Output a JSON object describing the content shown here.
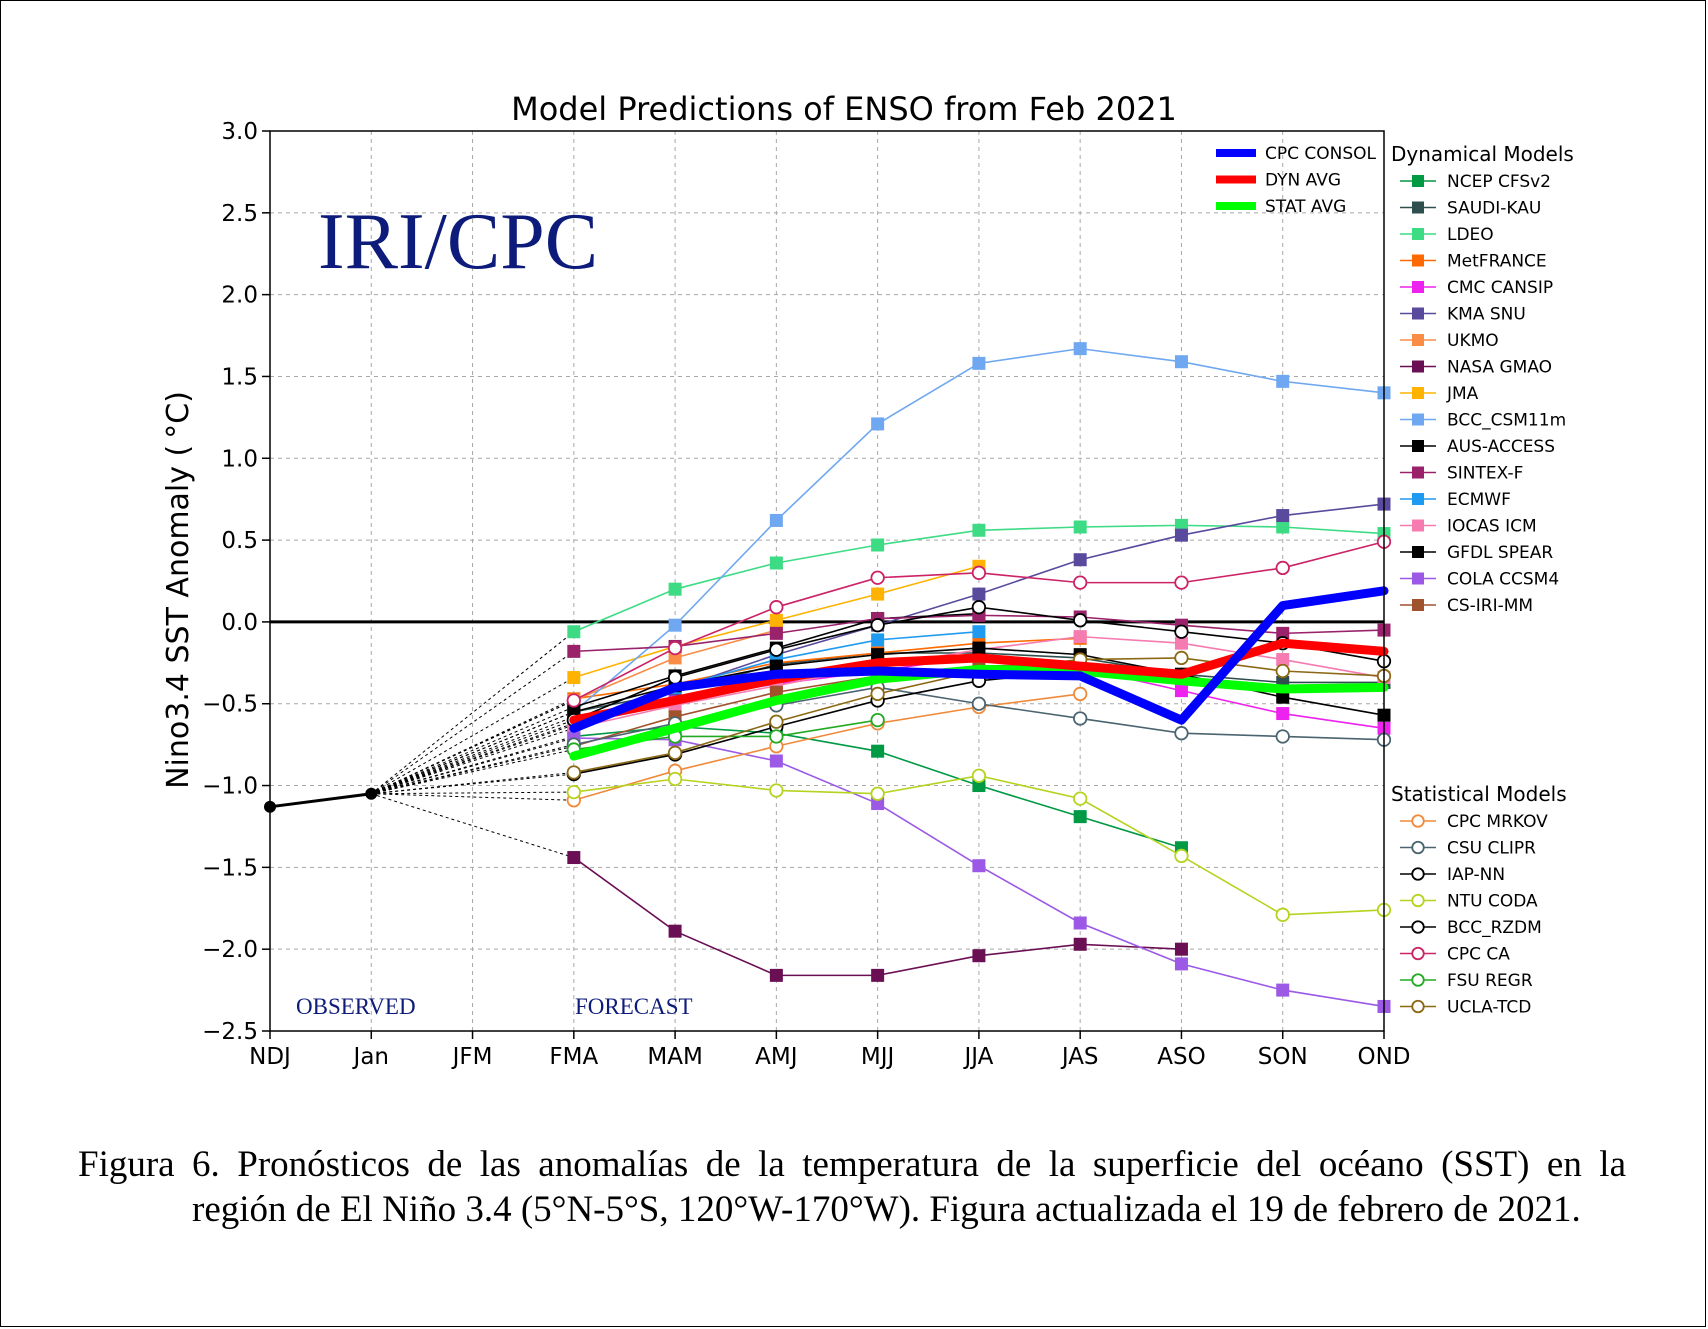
{
  "chart_data": {
    "type": "line",
    "title": "Model Predictions of ENSO from Feb 2021",
    "ylabel": "Nino3.4 SST Anomaly ( °C)",
    "xlabel": "",
    "categories": [
      "NDJ",
      "Jan",
      "JFM",
      "FMA",
      "MAM",
      "AMJ",
      "MJJ",
      "JJA",
      "JAS",
      "ASO",
      "SON",
      "OND"
    ],
    "ylim": [
      -2.5,
      3.0
    ],
    "yticks": [
      3.0,
      2.5,
      2.0,
      1.5,
      1.0,
      0.5,
      0.0,
      -0.5,
      -1.0,
      -1.5,
      -2.0,
      -2.5
    ],
    "ytick_labels": [
      "3.0",
      "2.5",
      "2.0",
      "1.5",
      "1.0",
      "0.5",
      "0.0",
      "−0.5",
      "−1.0",
      "−1.5",
      "−2.0",
      "−2.5"
    ],
    "grid": true,
    "zero_line": true,
    "annotations": {
      "watermark": "IRI/CPC",
      "observed": "OBSERVED",
      "forecast": "FORECAST"
    },
    "observed": {
      "x": [
        "NDJ",
        "Jan"
      ],
      "values": [
        -1.13,
        -1.05
      ],
      "color": "#000000"
    },
    "averages": [
      {
        "name": "CPC CONSOL",
        "color": "#0000ff",
        "values": [
          -0.65,
          -0.4,
          -0.32,
          -0.3,
          -0.32,
          -0.33,
          -0.6,
          0.1,
          0.19
        ]
      },
      {
        "name": "DYN AVG",
        "color": "#ff0000",
        "values": [
          -0.6,
          -0.48,
          -0.35,
          -0.25,
          -0.22,
          -0.27,
          -0.32,
          -0.13,
          -0.18
        ]
      },
      {
        "name": "STAT AVG",
        "color": "#00ff00",
        "values": [
          -0.82,
          -0.65,
          -0.48,
          -0.35,
          -0.29,
          -0.3,
          -0.36,
          -0.41,
          -0.4
        ]
      }
    ],
    "legend_dynamical_title": "Dynamical Models",
    "legend_statistical_title": "Statistical Models",
    "dynamical_series": [
      {
        "name": "NCEP CFSv2",
        "color": "#009944",
        "values": [
          -0.7,
          -0.64,
          -0.68,
          -0.79,
          -1.0,
          -1.19,
          -1.38
        ]
      },
      {
        "name": "SAUDI-KAU",
        "color": "#2f4f4f",
        "values": [
          -0.55,
          -0.43,
          -0.26,
          -0.19,
          -0.19,
          -0.22,
          -0.32,
          -0.37,
          -0.37
        ]
      },
      {
        "name": "LDEO",
        "color": "#3ddc84",
        "values": [
          -0.06,
          0.2,
          0.36,
          0.47,
          0.56,
          0.58,
          0.59,
          0.58,
          0.54
        ]
      },
      {
        "name": "MetFRANCE",
        "color": "#ff6a00",
        "values": [
          -0.47,
          -0.38,
          -0.25,
          -0.19,
          -0.13,
          -0.1
        ]
      },
      {
        "name": "CMC CANSIP",
        "color": "#ee22ee",
        "values": [
          -0.58,
          -0.47,
          -0.38,
          -0.3,
          -0.21,
          -0.28,
          -0.42,
          -0.56,
          -0.65
        ]
      },
      {
        "name": "KMA SNU",
        "color": "#5a4a9e",
        "values": [
          -0.62,
          -0.41,
          -0.2,
          -0.02,
          0.17,
          0.38,
          0.53,
          0.65,
          0.72
        ]
      },
      {
        "name": "UKMO",
        "color": "#f98d46",
        "values": [
          -0.48,
          -0.22,
          -0.05
        ]
      },
      {
        "name": "NASA GMAO",
        "color": "#6b0f55",
        "values": [
          -1.44,
          -1.89,
          -2.16,
          -2.16,
          -2.04,
          -1.97,
          -2.0
        ]
      },
      {
        "name": "JMA",
        "color": "#ffb300",
        "values": [
          -0.34,
          -0.15,
          0.01,
          0.17,
          0.34
        ]
      },
      {
        "name": "BCC_CSM11m",
        "color": "#6fa8f0",
        "values": [
          -0.55,
          -0.02,
          0.62,
          1.21,
          1.58,
          1.67,
          1.59,
          1.47,
          1.4
        ]
      },
      {
        "name": "AUS-ACCESS",
        "color": "#000000",
        "values": [
          -0.52,
          -0.33,
          -0.16,
          0.02,
          0.05
        ]
      },
      {
        "name": "SINTEX-F",
        "color": "#99226b",
        "values": [
          -0.18,
          -0.15,
          -0.07,
          0.02,
          0.04,
          0.03,
          -0.02,
          -0.07,
          -0.05
        ]
      },
      {
        "name": "ECMWF",
        "color": "#1e9bf0",
        "values": [
          -0.63,
          -0.4,
          -0.23,
          -0.11,
          -0.06
        ]
      },
      {
        "name": "IOCAS ICM",
        "color": "#f57bb0",
        "values": [
          -0.65,
          -0.51,
          -0.39,
          -0.27,
          -0.17,
          -0.09,
          -0.13,
          -0.23,
          -0.34
        ]
      },
      {
        "name": "GFDL SPEAR",
        "color": "#000000",
        "values": [
          -0.55,
          -0.39,
          -0.27,
          -0.2,
          -0.16,
          -0.2,
          -0.32,
          -0.46,
          -0.57
        ]
      },
      {
        "name": "COLA CCSM4",
        "color": "#9b59e6",
        "values": [
          -0.71,
          -0.72,
          -0.85,
          -1.11,
          -1.49,
          -1.84,
          -2.09,
          -2.25,
          -2.35
        ]
      },
      {
        "name": "CS-IRI-MM",
        "color": "#a0522d",
        "values": [
          -0.76,
          -0.58,
          -0.43,
          -0.33,
          -0.27,
          -0.26
        ]
      }
    ],
    "statistical_series": [
      {
        "name": "CPC MRKOV",
        "color": "#f08a3a",
        "values": [
          -1.09,
          -0.91,
          -0.76,
          -0.62,
          -0.52,
          -0.44
        ]
      },
      {
        "name": "CSU CLIPR",
        "color": "#4a6470",
        "values": [
          -0.75,
          -0.62,
          -0.51,
          -0.4,
          -0.5,
          -0.59,
          -0.68,
          -0.7,
          -0.72
        ]
      },
      {
        "name": "IAP-NN",
        "color": "#000000",
        "values": [
          -0.93,
          -0.81,
          -0.64,
          -0.48,
          -0.36,
          -0.3,
          -0.33
        ]
      },
      {
        "name": "NTU CODA",
        "color": "#b5d31f",
        "values": [
          -1.04,
          -0.96,
          -1.03,
          -1.05,
          -0.94,
          -1.08,
          -1.43,
          -1.79,
          -1.76
        ]
      },
      {
        "name": "BCC_RZDM",
        "color": "#000000",
        "values": [
          -0.6,
          -0.34,
          -0.17,
          -0.02,
          0.09,
          0.01,
          -0.06,
          -0.13,
          -0.24
        ]
      },
      {
        "name": "CPC CA",
        "color": "#cc2266",
        "values": [
          -0.48,
          -0.16,
          0.09,
          0.27,
          0.3,
          0.24,
          0.24,
          0.33,
          0.49
        ]
      },
      {
        "name": "FSU REGR",
        "color": "#22aa22",
        "values": [
          -0.78,
          -0.7,
          -0.7,
          -0.6
        ]
      },
      {
        "name": "UCLA-TCD",
        "color": "#8b6914",
        "values": [
          -0.92,
          -0.8,
          -0.61,
          -0.44,
          -0.3,
          -0.23,
          -0.22,
          -0.3,
          -0.33
        ]
      }
    ]
  },
  "caption": {
    "line1": "Figura 6. Pronósticos de las anomalías de la temperatura de la superficie del océano (SST) en la",
    "rest": "región de El Niño 3.4 (5°N-5°S, 120°W-170°W). Figura actualizada el 19 de febrero de 2021."
  }
}
